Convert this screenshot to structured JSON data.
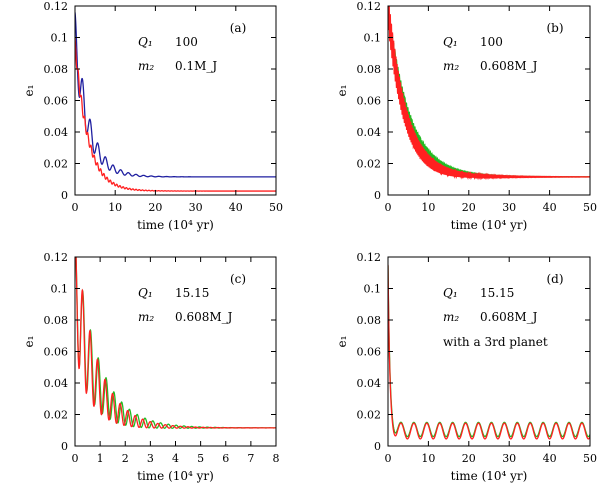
{
  "chart_data": [
    {
      "type": "line",
      "panel": "(a)",
      "xlabel": "time (10⁴ yr)",
      "ylabel": "e₁",
      "xlim": [
        0,
        50
      ],
      "ylim": [
        0,
        0.12
      ],
      "xticks": [
        "0",
        "10",
        "20",
        "30",
        "40",
        "50"
      ],
      "yticks": [
        "0",
        "0.02",
        "0.04",
        "0.06",
        "0.08",
        "0.1",
        "0.12"
      ],
      "annotations": [
        {
          "label": "Q₁",
          "value": "100"
        },
        {
          "label": "m₂",
          "value": "0.1M_J"
        }
      ],
      "series": [
        {
          "name": "blue",
          "color": "#1f1fa0",
          "e0": 0.098,
          "eq": 0.0115,
          "tau": 3.4,
          "amp": 0.018,
          "period": 1.9,
          "osc_decay": 4.5
        },
        {
          "name": "red",
          "color": "#ff2020",
          "e0": 0.096,
          "eq": 0.0025,
          "tau": 3.2,
          "amp": 0.004,
          "period": 0.8,
          "osc_decay": 6
        }
      ]
    },
    {
      "type": "line",
      "panel": "(b)",
      "xlabel": "time (10⁴ yr)",
      "ylabel": "e₁",
      "xlim": [
        0,
        50
      ],
      "ylim": [
        0,
        0.12
      ],
      "xticks": [
        "0",
        "10",
        "20",
        "30",
        "40",
        "50"
      ],
      "yticks": [
        "0",
        "0.02",
        "0.04",
        "0.06",
        "0.08",
        "0.1",
        "0.12"
      ],
      "annotations": [
        {
          "label": "Q₁",
          "value": "100"
        },
        {
          "label": "m₂",
          "value": "0.608M_J"
        }
      ],
      "series": [
        {
          "name": "green",
          "color": "#22bb22",
          "e0": 0.118,
          "eq": 0.0115,
          "tau": 5.2,
          "amp": 0.004,
          "period": 0.35,
          "osc_decay": 12
        },
        {
          "name": "red",
          "color": "#ff2020",
          "e0": 0.118,
          "eq": 0.0115,
          "tau": 4.3,
          "amp": 0.011,
          "period": 0.28,
          "osc_decay": 10
        }
      ]
    },
    {
      "type": "line",
      "panel": "(c)",
      "xlabel": "time (10⁴ yr)",
      "ylabel": "e₁",
      "xlim": [
        0,
        8
      ],
      "ylim": [
        0,
        0.12
      ],
      "xticks": [
        "0",
        "1",
        "2",
        "3",
        "4",
        "5",
        "6",
        "7",
        "8"
      ],
      "yticks": [
        "0",
        "0.02",
        "0.04",
        "0.06",
        "0.08",
        "0.1",
        "0.12"
      ],
      "annotations": [
        {
          "label": "Q₁",
          "value": "15.15"
        },
        {
          "label": "m₂",
          "value": "0.608M_J"
        }
      ],
      "series": [
        {
          "name": "green",
          "color": "#22bb22",
          "e0": 0.095,
          "eq": 0.0115,
          "tau": 0.85,
          "amp": 0.038,
          "period": 0.31,
          "osc_decay": 1.1
        },
        {
          "name": "red",
          "color": "#ff2020",
          "e0": 0.095,
          "eq": 0.0115,
          "tau": 0.8,
          "amp": 0.04,
          "period": 0.3,
          "osc_decay": 1.0
        }
      ]
    },
    {
      "type": "line",
      "panel": "(d)",
      "xlabel": "time (10⁴ yr)",
      "ylabel": "e₁",
      "xlim": [
        0,
        50
      ],
      "ylim": [
        0,
        0.12
      ],
      "xticks": [
        "0",
        "10",
        "20",
        "30",
        "40",
        "50"
      ],
      "yticks": [
        "0",
        "0.02",
        "0.04",
        "0.06",
        "0.08",
        "0.1",
        "0.12"
      ],
      "annotations": [
        {
          "label": "Q₁",
          "value": "15.15"
        },
        {
          "label": "m₂",
          "value": "0.608M_J"
        },
        {
          "label": "",
          "value": "with a 3rd planet"
        }
      ],
      "series": [
        {
          "name": "green",
          "color": "#22bb22",
          "e0": 0.11,
          "eq": 0.0105,
          "tau": 0.45,
          "amp": 0.0045,
          "period": 3.2,
          "osc_decay": 0
        },
        {
          "name": "red",
          "color": "#ff2020",
          "e0": 0.11,
          "eq": 0.0095,
          "tau": 0.42,
          "amp": 0.005,
          "period": 3.2,
          "osc_decay": 0
        }
      ]
    }
  ]
}
